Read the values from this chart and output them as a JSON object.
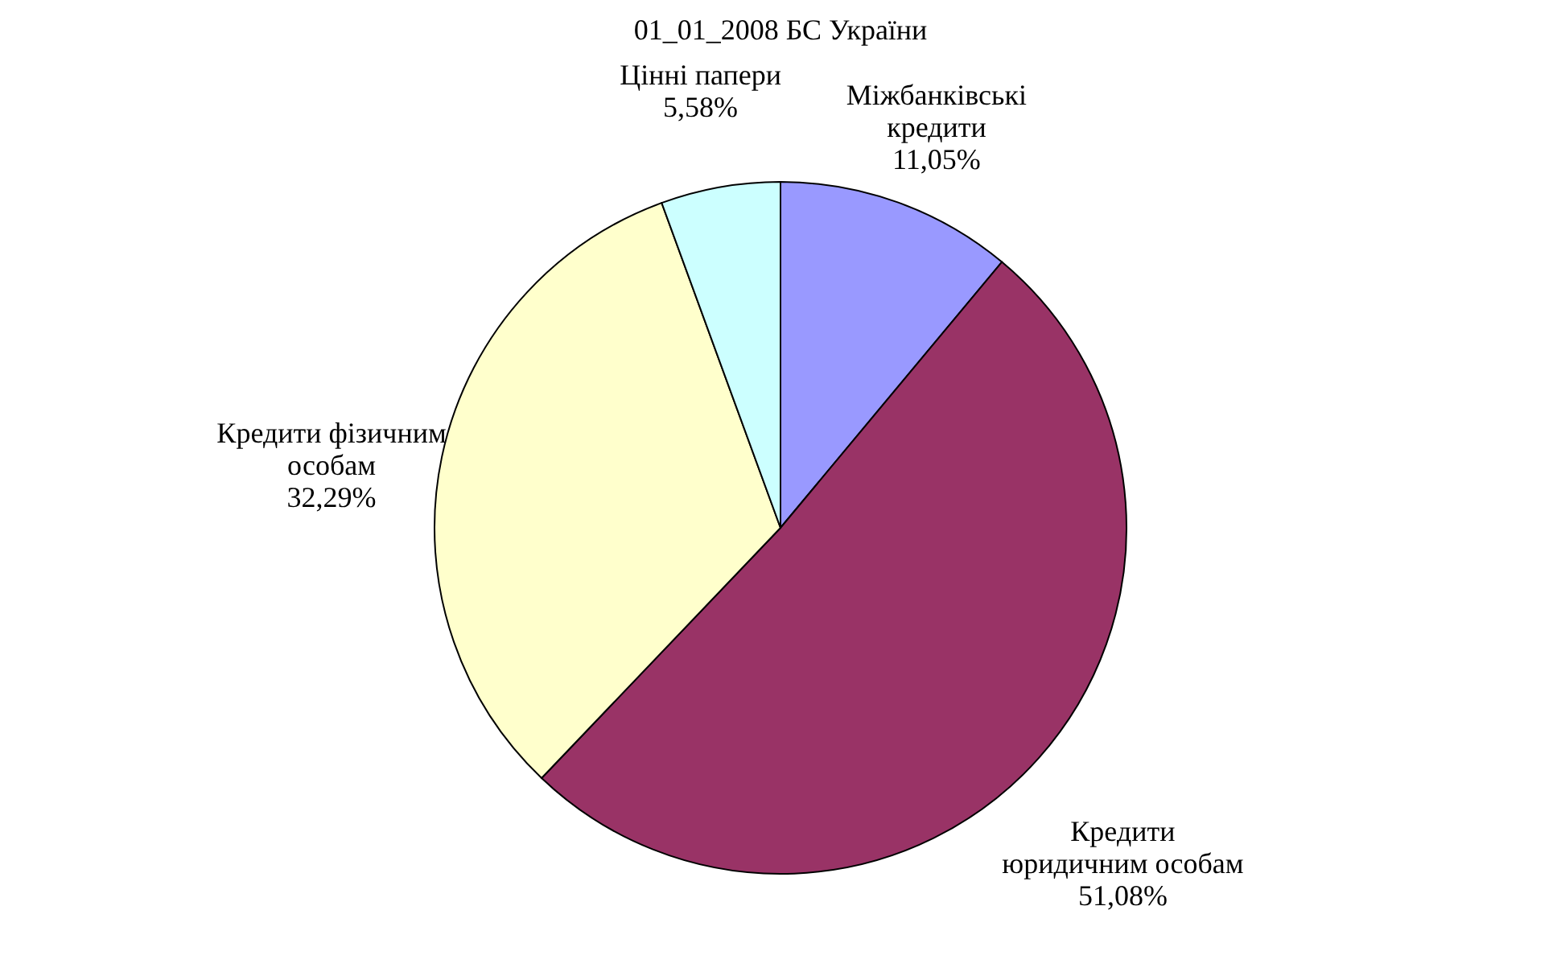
{
  "chart_data": {
    "type": "pie",
    "title": "01_01_2008 БС України",
    "categories": [
      "Міжбанківські кредити",
      "Кредити юридичним особам",
      "Кредити фізичним особам",
      "Цінні папери"
    ],
    "values": [
      11.05,
      51.08,
      32.29,
      5.58
    ],
    "value_labels": [
      "11,05%",
      "51,08%",
      "32,29%",
      "5,58%"
    ],
    "colors": [
      "#9999ff",
      "#993366",
      "#ffffcc",
      "#ccffff"
    ]
  }
}
